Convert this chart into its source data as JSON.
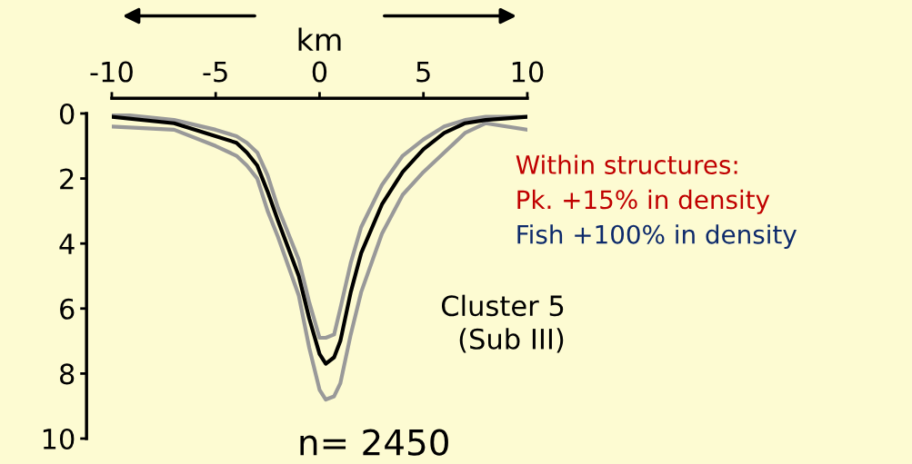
{
  "chart_data": {
    "type": "line",
    "xlabel": "km",
    "x": [
      -10,
      -7,
      -5,
      -4,
      -3.5,
      -3,
      -2.5,
      -2,
      -1,
      -0.5,
      0,
      0.3,
      0.7,
      1,
      1.5,
      2,
      3,
      4,
      5,
      6,
      7,
      8,
      10
    ],
    "series": [
      {
        "color": "#999999",
        "values": [
          0.0,
          0.2,
          0.5,
          0.7,
          0.9,
          1.2,
          1.9,
          2.9,
          4.5,
          5.8,
          6.9,
          6.9,
          6.8,
          6.0,
          4.6,
          3.5,
          2.2,
          1.3,
          0.8,
          0.4,
          0.2,
          0.1,
          0.1
        ]
      },
      {
        "color": "#999999",
        "values": [
          0.4,
          0.5,
          1.0,
          1.3,
          1.6,
          2.0,
          3.0,
          3.8,
          5.6,
          7.2,
          8.5,
          8.8,
          8.7,
          8.3,
          6.8,
          5.5,
          3.7,
          2.5,
          1.8,
          1.2,
          0.6,
          0.3,
          0.5
        ]
      },
      {
        "color": "#000000",
        "values": [
          0.1,
          0.3,
          0.7,
          0.9,
          1.2,
          1.6,
          2.4,
          3.3,
          5.0,
          6.3,
          7.4,
          7.7,
          7.5,
          7.0,
          5.5,
          4.3,
          2.8,
          1.8,
          1.1,
          0.6,
          0.3,
          0.2,
          0.1
        ]
      }
    ],
    "xlim": [
      -10,
      10
    ],
    "xticks": [
      -10,
      -5,
      0,
      5,
      10
    ],
    "ylim": [
      10,
      0
    ],
    "yticks": [
      0,
      2,
      4,
      6,
      8,
      10
    ],
    "annotations": [
      "Cluster 5\n(Sub III)",
      "n= 2450",
      "Within structures:",
      "Pk. +15% in density",
      "Fish +100% in density"
    ],
    "grid": false
  }
}
